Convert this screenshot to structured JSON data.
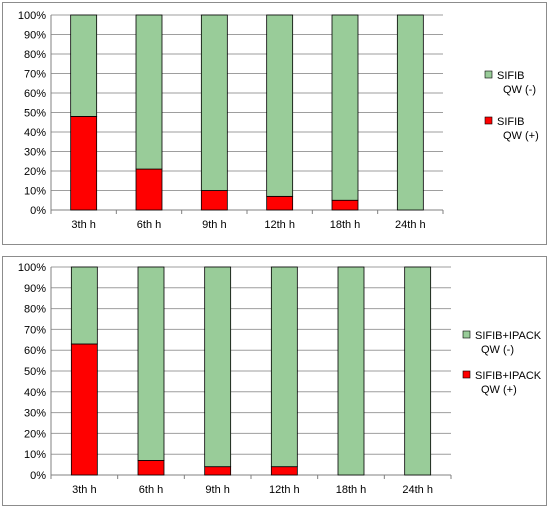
{
  "chart_data": [
    {
      "type": "bar",
      "stacked": true,
      "percent": true,
      "categories": [
        "3th h",
        "6th h",
        "9th h",
        "12th h",
        "18th h",
        "24th h"
      ],
      "series": [
        {
          "name_lines": [
            "SIFIB",
            "QW (+)"
          ],
          "color": "#ff0000",
          "values": [
            48,
            21,
            10,
            7,
            5,
            0
          ]
        },
        {
          "name_lines": [
            "SIFIB",
            "QW (-)"
          ],
          "color": "#99cc99",
          "values": [
            52,
            79,
            90,
            93,
            95,
            100
          ]
        }
      ],
      "legend_order": [
        1,
        0
      ],
      "y_ticks": [
        "0%",
        "10%",
        "20%",
        "30%",
        "40%",
        "50%",
        "60%",
        "70%",
        "80%",
        "90%",
        "100%"
      ],
      "ylim": [
        0,
        100
      ],
      "grid": true,
      "legend": "right"
    },
    {
      "type": "bar",
      "stacked": true,
      "percent": true,
      "categories": [
        "3th h",
        "6th h",
        "9th h",
        "12th h",
        "18th h",
        "24th h"
      ],
      "series": [
        {
          "name_lines": [
            "SIFIB+IPACK",
            "QW (+)"
          ],
          "color": "#ff0000",
          "values": [
            63,
            7,
            4,
            4,
            0,
            0
          ]
        },
        {
          "name_lines": [
            "SIFIB+IPACK",
            "QW (-)"
          ],
          "color": "#99cc99",
          "values": [
            37,
            93,
            96,
            96,
            100,
            100
          ]
        }
      ],
      "legend_order": [
        1,
        0
      ],
      "y_ticks": [
        "0%",
        "10%",
        "20%",
        "30%",
        "40%",
        "50%",
        "60%",
        "70%",
        "80%",
        "90%",
        "100%"
      ],
      "ylim": [
        0,
        100
      ],
      "grid": true,
      "legend": "right"
    }
  ]
}
